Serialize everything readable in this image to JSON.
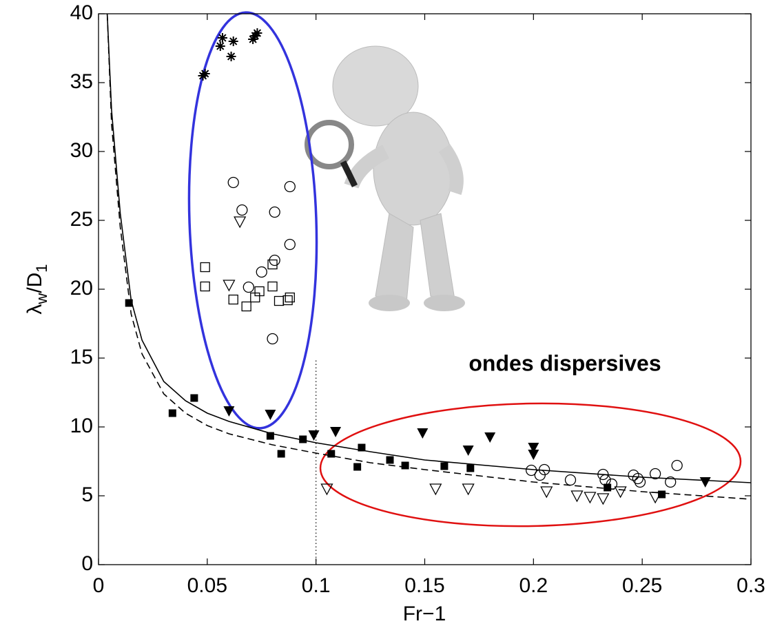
{
  "chart_data": {
    "type": "scatter",
    "xlabel": "Fr−1",
    "ylabel": [
      "λ",
      "w",
      "/D",
      "1"
    ],
    "annotation": "ondes dispersives",
    "annotation_color": "#ff0000",
    "xlim": [
      0,
      0.3
    ],
    "ylim": [
      0,
      40
    ],
    "xticks": [
      0,
      0.05,
      0.1,
      0.15,
      0.2,
      0.25,
      0.3
    ],
    "yticks": [
      0,
      5,
      10,
      15,
      20,
      25,
      30,
      35,
      40
    ],
    "vline": 0.1,
    "series": [
      {
        "marker": "square-filled",
        "color": "#000000",
        "x": [
          0.014,
          0.034,
          0.044,
          0.079,
          0.084,
          0.094,
          0.107,
          0.121,
          0.119,
          0.134,
          0.141,
          0.159,
          0.171,
          0.234,
          0.259
        ],
        "y": [
          19.0,
          11.0,
          12.1,
          9.35,
          8.05,
          9.1,
          8.05,
          8.5,
          7.1,
          7.6,
          7.2,
          7.15,
          7.0,
          5.6,
          5.1
        ]
      },
      {
        "marker": "triangle-filled",
        "color": "#000000",
        "x": [
          0.06,
          0.079,
          0.099,
          0.109,
          0.149,
          0.17,
          0.18,
          0.2,
          0.2,
          0.279
        ],
        "y": [
          11.15,
          10.9,
          9.4,
          9.65,
          9.55,
          8.3,
          9.25,
          8.5,
          8.0,
          6.0
        ]
      },
      {
        "marker": "triangle-open",
        "color": "#000000",
        "x": [
          0.065,
          0.06,
          0.105,
          0.155,
          0.17,
          0.206,
          0.22,
          0.226,
          0.232,
          0.24,
          0.256
        ],
        "y": [
          24.9,
          20.3,
          5.5,
          5.5,
          5.5,
          5.3,
          5.0,
          4.9,
          4.8,
          5.3,
          4.9
        ]
      },
      {
        "marker": "circle-open",
        "color": "#000000",
        "x": [
          0.062,
          0.066,
          0.088,
          0.081,
          0.088,
          0.075,
          0.081,
          0.069,
          0.08,
          0.199,
          0.203,
          0.205,
          0.217,
          0.232,
          0.233,
          0.236,
          0.246,
          0.248,
          0.249,
          0.256,
          0.263,
          0.266
        ],
        "y": [
          27.75,
          25.75,
          27.45,
          25.6,
          23.25,
          21.25,
          22.1,
          20.15,
          16.4,
          6.85,
          6.5,
          6.9,
          6.15,
          6.55,
          6.15,
          5.85,
          6.5,
          6.25,
          6.0,
          6.6,
          6.0,
          7.2
        ]
      },
      {
        "marker": "square-open",
        "color": "#000000",
        "x": [
          0.049,
          0.049,
          0.062,
          0.068,
          0.072,
          0.074,
          0.08,
          0.08,
          0.083,
          0.087,
          0.088
        ],
        "y": [
          21.6,
          20.2,
          19.25,
          18.75,
          19.4,
          19.85,
          21.8,
          20.2,
          19.15,
          19.2,
          19.4
        ]
      },
      {
        "marker": "asterisk",
        "color": "#000000",
        "x": [
          0.048,
          0.049,
          0.056,
          0.057,
          0.062,
          0.061,
          0.071,
          0.072,
          0.073
        ],
        "y": [
          35.5,
          35.65,
          37.65,
          38.25,
          38.0,
          36.9,
          38.15,
          38.4,
          38.6
        ]
      }
    ],
    "curves": [
      {
        "style": "solid",
        "x": [
          0.004,
          0.006,
          0.01,
          0.015,
          0.02,
          0.03,
          0.04,
          0.05,
          0.06,
          0.08,
          0.1,
          0.125,
          0.15,
          0.2,
          0.25,
          0.3
        ],
        "y": [
          40,
          33,
          25.5,
          19.2,
          16.3,
          13.3,
          11.9,
          11.0,
          10.4,
          9.5,
          8.85,
          8.2,
          7.6,
          6.9,
          6.35,
          5.95
        ]
      },
      {
        "style": "dashed",
        "x": [
          0.004,
          0.006,
          0.01,
          0.015,
          0.02,
          0.03,
          0.04,
          0.05,
          0.06,
          0.08,
          0.1,
          0.125,
          0.15,
          0.2,
          0.25,
          0.3
        ],
        "y": [
          40,
          32,
          24.5,
          18.2,
          15.3,
          12.4,
          11.0,
          10.1,
          9.5,
          8.7,
          8.1,
          7.4,
          6.9,
          6.0,
          5.3,
          4.75
        ]
      }
    ]
  }
}
